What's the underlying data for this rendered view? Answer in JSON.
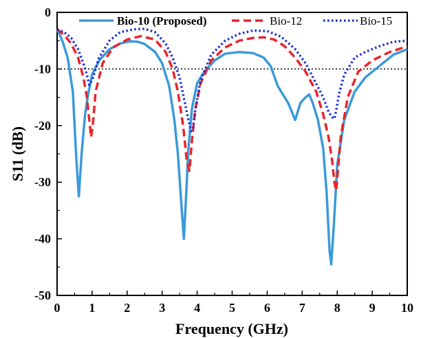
{
  "chart_data": {
    "type": "line",
    "xlabel": "Frequency (GHz)",
    "ylabel": "S11 (dB)",
    "xlim": [
      0,
      10
    ],
    "ylim": [
      -50,
      0
    ],
    "x_ticks": [
      "0",
      "1",
      "2",
      "3",
      "4",
      "5",
      "6",
      "7",
      "8",
      "9",
      "10"
    ],
    "y_ticks": [
      "0",
      "-10",
      "-20",
      "-30",
      "-40",
      "-50"
    ],
    "grid": false,
    "legend_position": "top",
    "reference_line": {
      "y": -10,
      "style": "dotted",
      "color": "#000000"
    },
    "series": [
      {
        "name": "Bio-10 (Proposed)",
        "color": "#3a9ad9",
        "style": "solid",
        "x": [
          0,
          0.15,
          0.3,
          0.45,
          0.55,
          0.62,
          0.7,
          0.8,
          0.9,
          1.0,
          1.2,
          1.5,
          1.8,
          2.1,
          2.3,
          2.5,
          2.8,
          3.0,
          3.2,
          3.35,
          3.45,
          3.55,
          3.62,
          3.68,
          3.75,
          3.85,
          4.0,
          4.2,
          4.5,
          4.8,
          5.2,
          5.6,
          5.9,
          6.1,
          6.3,
          6.45,
          6.6,
          6.8,
          6.95,
          7.1,
          7.2,
          7.3,
          7.45,
          7.6,
          7.7,
          7.78,
          7.83,
          7.9,
          8.0,
          8.2,
          8.5,
          8.8,
          9.2,
          9.6,
          10.0
        ],
        "y": [
          -3,
          -5,
          -8,
          -14,
          -26,
          -32.5,
          -25,
          -18,
          -14,
          -11,
          -8.5,
          -6.5,
          -5.5,
          -5.1,
          -5.2,
          -5.6,
          -7,
          -9,
          -13,
          -19,
          -25,
          -34,
          -40,
          -33,
          -24,
          -17,
          -12.5,
          -10.5,
          -8.5,
          -7.3,
          -7,
          -7.2,
          -8,
          -9.5,
          -13,
          -14.5,
          -16,
          -19,
          -16,
          -15,
          -14.5,
          -16,
          -19,
          -24,
          -32,
          -42,
          -44.5,
          -38,
          -27,
          -19,
          -14,
          -11.5,
          -9.5,
          -7.5,
          -6.5
        ]
      },
      {
        "name": "Bio-12",
        "color": "#e8252b",
        "style": "dashed",
        "x": [
          0,
          0.2,
          0.4,
          0.6,
          0.75,
          0.85,
          0.92,
          0.97,
          1.02,
          1.1,
          1.3,
          1.6,
          2.0,
          2.4,
          2.8,
          3.1,
          3.3,
          3.45,
          3.6,
          3.7,
          3.78,
          3.82,
          3.86,
          3.95,
          4.1,
          4.4,
          4.8,
          5.2,
          5.6,
          5.9,
          6.2,
          6.5,
          6.8,
          7.1,
          7.4,
          7.6,
          7.75,
          7.85,
          7.92,
          7.97,
          8.02,
          8.1,
          8.3,
          8.6,
          9.0,
          9.5,
          10.0
        ],
        "y": [
          -3,
          -4,
          -5.5,
          -8,
          -11.5,
          -15,
          -19,
          -22,
          -20,
          -14,
          -9,
          -6.2,
          -4.8,
          -4.2,
          -4.8,
          -7,
          -10,
          -14,
          -20,
          -26,
          -28,
          -25,
          -22,
          -17,
          -12.5,
          -8.5,
          -6.2,
          -5,
          -4.5,
          -4.4,
          -4.8,
          -6,
          -8,
          -10.5,
          -14,
          -18,
          -22,
          -26,
          -30,
          -31.5,
          -28,
          -22,
          -15,
          -10.5,
          -8.5,
          -7,
          -6
        ]
      },
      {
        "name": "Bio-15",
        "color": "#1f2fd6",
        "style": "dotted",
        "x": [
          0,
          0.2,
          0.4,
          0.6,
          0.75,
          0.85,
          0.92,
          1.0,
          1.2,
          1.5,
          1.8,
          2.2,
          2.5,
          2.8,
          3.1,
          3.3,
          3.5,
          3.65,
          3.75,
          3.83,
          3.88,
          3.95,
          4.1,
          4.4,
          4.8,
          5.2,
          5.6,
          6.0,
          6.4,
          6.8,
          7.1,
          7.35,
          7.6,
          7.75,
          7.85,
          7.92,
          7.98,
          8.05,
          8.2,
          8.5,
          8.8,
          9.2,
          9.6,
          10.0
        ],
        "y": [
          -3,
          -3.5,
          -4.5,
          -6.5,
          -9,
          -11,
          -12.8,
          -12,
          -8,
          -5,
          -3.5,
          -3,
          -2.9,
          -3.5,
          -5.5,
          -8,
          -11.5,
          -16,
          -19,
          -21,
          -20.5,
          -17,
          -12,
          -7.5,
          -5,
          -3.8,
          -3.2,
          -3.3,
          -4.3,
          -6.5,
          -9,
          -12,
          -15,
          -17.5,
          -18.5,
          -18.8,
          -17,
          -14.5,
          -11,
          -8,
          -7,
          -6,
          -5.2,
          -5
        ]
      }
    ]
  }
}
